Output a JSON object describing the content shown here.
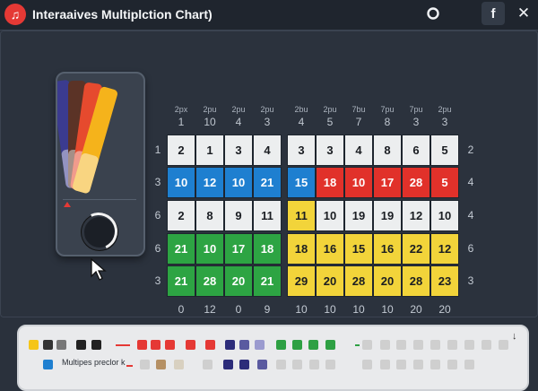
{
  "app": {
    "title": "Interaaives Multiplction Chart)",
    "icon": "music-note-icon",
    "accent": "#e53935"
  },
  "titlebar": {
    "buttons": [
      {
        "icon": "record-icon"
      },
      {
        "icon": "facebook-icon",
        "label": "f"
      },
      {
        "icon": "close-icon",
        "label": "✕"
      }
    ]
  },
  "fan": {
    "colors": [
      "#3b3b8f",
      "#5b3326",
      "#e64a2e",
      "#f5b31b"
    ],
    "marker_color": "#e53935"
  },
  "grid": {
    "column_headers_top": [
      "2px",
      "2pu",
      "2pu",
      "2pu",
      "2bu",
      "2pu",
      "7bu",
      "7pu",
      "7pu",
      "2pu"
    ],
    "column_headers": [
      "1",
      "10",
      "4",
      "3",
      "4",
      "5",
      "7",
      "8",
      "3",
      "3"
    ],
    "left_row_numbers": [
      "1",
      "3",
      "6",
      "6",
      "3"
    ],
    "right_row_numbers": [
      "2",
      "4",
      "4",
      "6",
      "3"
    ],
    "bottom_numbers": [
      "0",
      "12",
      "0",
      "9",
      "10",
      "10",
      "10",
      "10",
      "20",
      "20"
    ],
    "row_colors": [
      [
        "white",
        "white",
        "white",
        "white",
        "white",
        "white",
        "white",
        "white",
        "white",
        "white"
      ],
      [
        "blue",
        "blue",
        "blue",
        "blue",
        "blue",
        "red",
        "red",
        "red",
        "red",
        "red"
      ],
      [
        "white",
        "white",
        "white",
        "white",
        "yellow",
        "white",
        "white",
        "white",
        "white",
        "white"
      ],
      [
        "green",
        "green",
        "green",
        "green",
        "yellow",
        "yellow",
        "yellow",
        "yellow",
        "yellow",
        "yellow"
      ],
      [
        "green",
        "green",
        "green",
        "green",
        "yellow",
        "yellow",
        "yellow",
        "yellow",
        "yellow",
        "yellow"
      ]
    ],
    "rows": [
      [
        "2",
        "1",
        "3",
        "4",
        "3",
        "3",
        "4",
        "8",
        "6",
        "5"
      ],
      [
        "10",
        "12",
        "10",
        "21",
        "15",
        "18",
        "10",
        "17",
        "28",
        "5"
      ],
      [
        "2",
        "8",
        "9",
        "11",
        "11",
        "10",
        "19",
        "19",
        "12",
        "10"
      ],
      [
        "21",
        "10",
        "17",
        "18",
        "18",
        "16",
        "15",
        "16",
        "22",
        "12"
      ],
      [
        "21",
        "28",
        "20",
        "21",
        "29",
        "20",
        "28",
        "20",
        "28",
        "23"
      ]
    ],
    "colors": {
      "white": "#eceeef",
      "blue": "#1e7fd0",
      "red": "#e1312a",
      "green": "#2da443",
      "yellow": "#f2d43a"
    }
  },
  "palette": {
    "label": "Multipes preclor k",
    "row1": [
      "#f5c518",
      "#333333",
      "#777777",
      "#222222",
      "#222222",
      "#e53935",
      "#e53935",
      "#e53935",
      "#e53935",
      "#e53935",
      "#2c2c7a",
      "#5a5aa0",
      "#9b9bcf",
      "#2ea043",
      "#2ea043",
      "#2ea043",
      "#2ea043",
      "#cfcfcf",
      "#cfcfcf",
      "#cfcfcf",
      "#cfcfcf",
      "#cfcfcf",
      "#cfcfcf",
      "#cfcfcf",
      "#cfcfcf",
      "#cfcfcf"
    ],
    "row2": [
      "#1e7fd0",
      "#cfcfcf",
      "#b59064",
      "#d8d0c0",
      "#cfcfcf",
      "#2c2c7a",
      "#2c2c7a",
      "#5a5aa0",
      "#cfcfcf",
      "#cfcfcf",
      "#cfcfcf",
      "#cfcfcf",
      "#cfcfcf",
      "#cfcfcf",
      "#cfcfcf",
      "#cfcfcf",
      "#cfcfcf",
      "#cfcfcf",
      "#cfcfcf"
    ],
    "scroll_icon": "↓"
  }
}
